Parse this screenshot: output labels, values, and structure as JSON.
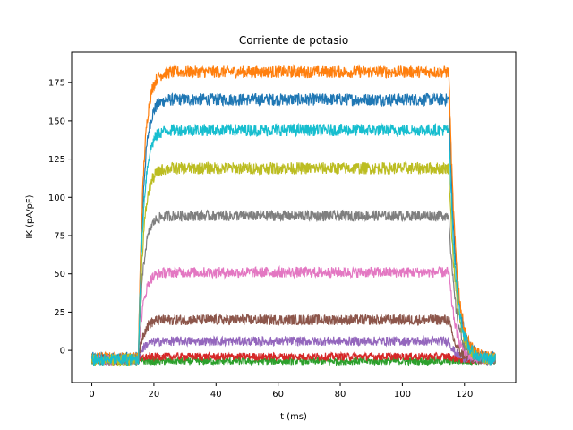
{
  "chart_data": {
    "type": "line",
    "title": "Corriente de potasio",
    "xlabel": "t (ms)",
    "ylabel": "IK (pA/pF)",
    "xlim": [
      -6.5,
      136.5
    ],
    "ylim": [
      -21,
      195
    ],
    "xticks": [
      0,
      20,
      40,
      60,
      80,
      100,
      120
    ],
    "yticks": [
      0,
      25,
      50,
      75,
      100,
      125,
      150,
      175
    ],
    "grid": false,
    "legend": "none",
    "pulse": {
      "start_ms": 15,
      "end_ms": 115,
      "total_ms": 130
    },
    "series": [
      {
        "color": "#1f77b4",
        "base": -5,
        "plateau": 164,
        "noise": 4
      },
      {
        "color": "#ff7f0e",
        "base": -5,
        "plateau": 182,
        "noise": 4
      },
      {
        "color": "#2ca02c",
        "base": -7,
        "plateau": -7,
        "noise": 2.5
      },
      {
        "color": "#d62728",
        "base": -6,
        "plateau": -4,
        "noise": 2.5
      },
      {
        "color": "#9467bd",
        "base": -6,
        "plateau": 6,
        "noise": 3
      },
      {
        "color": "#8c564b",
        "base": -6,
        "plateau": 20,
        "noise": 3.5
      },
      {
        "color": "#e377c2",
        "base": -6,
        "plateau": 51,
        "noise": 3.5
      },
      {
        "color": "#7f7f7f",
        "base": -6,
        "plateau": 88,
        "noise": 3.5
      },
      {
        "color": "#bcbd22",
        "base": -6,
        "plateau": 119,
        "noise": 4
      },
      {
        "color": "#17becf",
        "base": -6,
        "plateau": 144,
        "noise": 4
      }
    ]
  }
}
